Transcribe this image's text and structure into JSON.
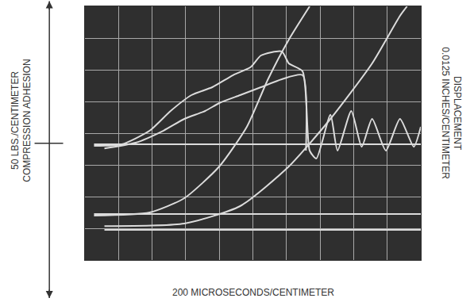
{
  "chart_data": {
    "type": "line",
    "ylabel": [
      "50 LBS./CENTIMETER",
      "COMPRESSION ADHESION"
    ],
    "y2label": [
      "DISPLACEMENT",
      "0.0125 INCHES/CENTIMETER"
    ],
    "xlabel": "200 MICROSECONDS/CENTIMETER",
    "xlim": [
      0,
      10
    ],
    "ylim": [
      -4,
      4
    ],
    "xticks": [
      0,
      1,
      2,
      3,
      4,
      5,
      6,
      7,
      8,
      9,
      10
    ],
    "yticks": [
      -4,
      -3,
      -2,
      -1,
      0,
      1,
      2,
      3,
      4
    ],
    "grid": true,
    "tick_labels": false,
    "color": "#dcdcdc",
    "series": [
      {
        "x": [
          0.27,
          1.1,
          1.93,
          2.55,
          3.17,
          3.79,
          4.41,
          4.93,
          5.24,
          5.86,
          6.07,
          6.48,
          6.69,
          6.89,
          7.31,
          7.52,
          7.93,
          8.24,
          8.55,
          8.96,
          9.38,
          9.79,
          10
        ],
        "values": [
          -0.4,
          -0.35,
          0.08,
          0.7,
          1.2,
          1.45,
          1.83,
          2.08,
          2.45,
          2.58,
          2.2,
          1.95,
          -0.55,
          -0.8,
          0.58,
          -0.55,
          0.7,
          -0.43,
          0.45,
          -0.55,
          0.45,
          -0.43,
          0.2
        ]
      },
      {
        "x": [
          0.58,
          1.51,
          2.34,
          2.96,
          3.58,
          4.0,
          4.62,
          5.24,
          5.86,
          6.48,
          6.58
        ],
        "values": [
          -0.48,
          -0.3,
          0.08,
          0.45,
          0.7,
          0.95,
          1.2,
          1.45,
          1.7,
          1.83,
          -0.55
        ]
      },
      {
        "x": [
          0.27,
          10
        ],
        "values": [
          -0.35,
          -0.35
        ]
      },
      {
        "x": [
          0.27,
          1.93,
          2.96,
          4.0,
          4.82,
          5.45,
          6.07,
          6.69
        ],
        "values": [
          -2.6,
          -2.5,
          -2.05,
          -1.05,
          0.2,
          1.7,
          2.95,
          4.0
        ]
      },
      {
        "x": [
          0.58,
          2.96,
          4.62,
          6.07,
          7.31,
          8.55,
          9.38,
          9.59
        ],
        "values": [
          -2.93,
          -2.85,
          -2.3,
          -1.05,
          0.45,
          2.2,
          3.7,
          4.0
        ]
      },
      {
        "x": [
          0.27,
          10
        ],
        "values": [
          -2.55,
          -2.55
        ]
      },
      {
        "x": [
          0.58,
          10
        ],
        "values": [
          -3.05,
          -3.05
        ]
      }
    ]
  }
}
